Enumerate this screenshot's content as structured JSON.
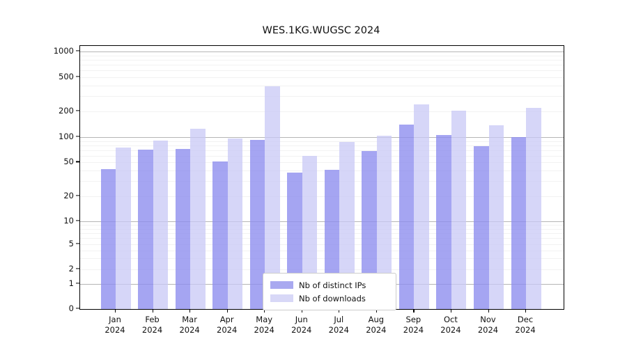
{
  "chart_data": {
    "type": "bar",
    "title": "WES.1KG.WUGSC 2024",
    "categories": [
      "Jan",
      "Feb",
      "Mar",
      "Apr",
      "May",
      "Jun",
      "Jul",
      "Aug",
      "Sep",
      "Oct",
      "Nov",
      "Dec"
    ],
    "category_year_line": "2024",
    "series": [
      {
        "name": "Nb of distinct IPs",
        "color": "rgba(140,140,238,0.78)",
        "legend_color": "#a9a9f0",
        "values": [
          42,
          71,
          73,
          51,
          92,
          38,
          41,
          68,
          140,
          105,
          78,
          100
        ]
      },
      {
        "name": "Nb of downloads",
        "color": "rgba(200,200,245,0.75)",
        "legend_color": "#d8d8f7",
        "values": [
          75,
          91,
          125,
          97,
          390,
          60,
          88,
          103,
          240,
          205,
          138,
          220
        ]
      }
    ],
    "yticks": [
      1000,
      500,
      200,
      100,
      50,
      20,
      10,
      5,
      2,
      1,
      0
    ],
    "ylim": [
      0,
      1200
    ],
    "yscale": "symlog",
    "grid": "on",
    "legend_position": "bottom-center"
  }
}
